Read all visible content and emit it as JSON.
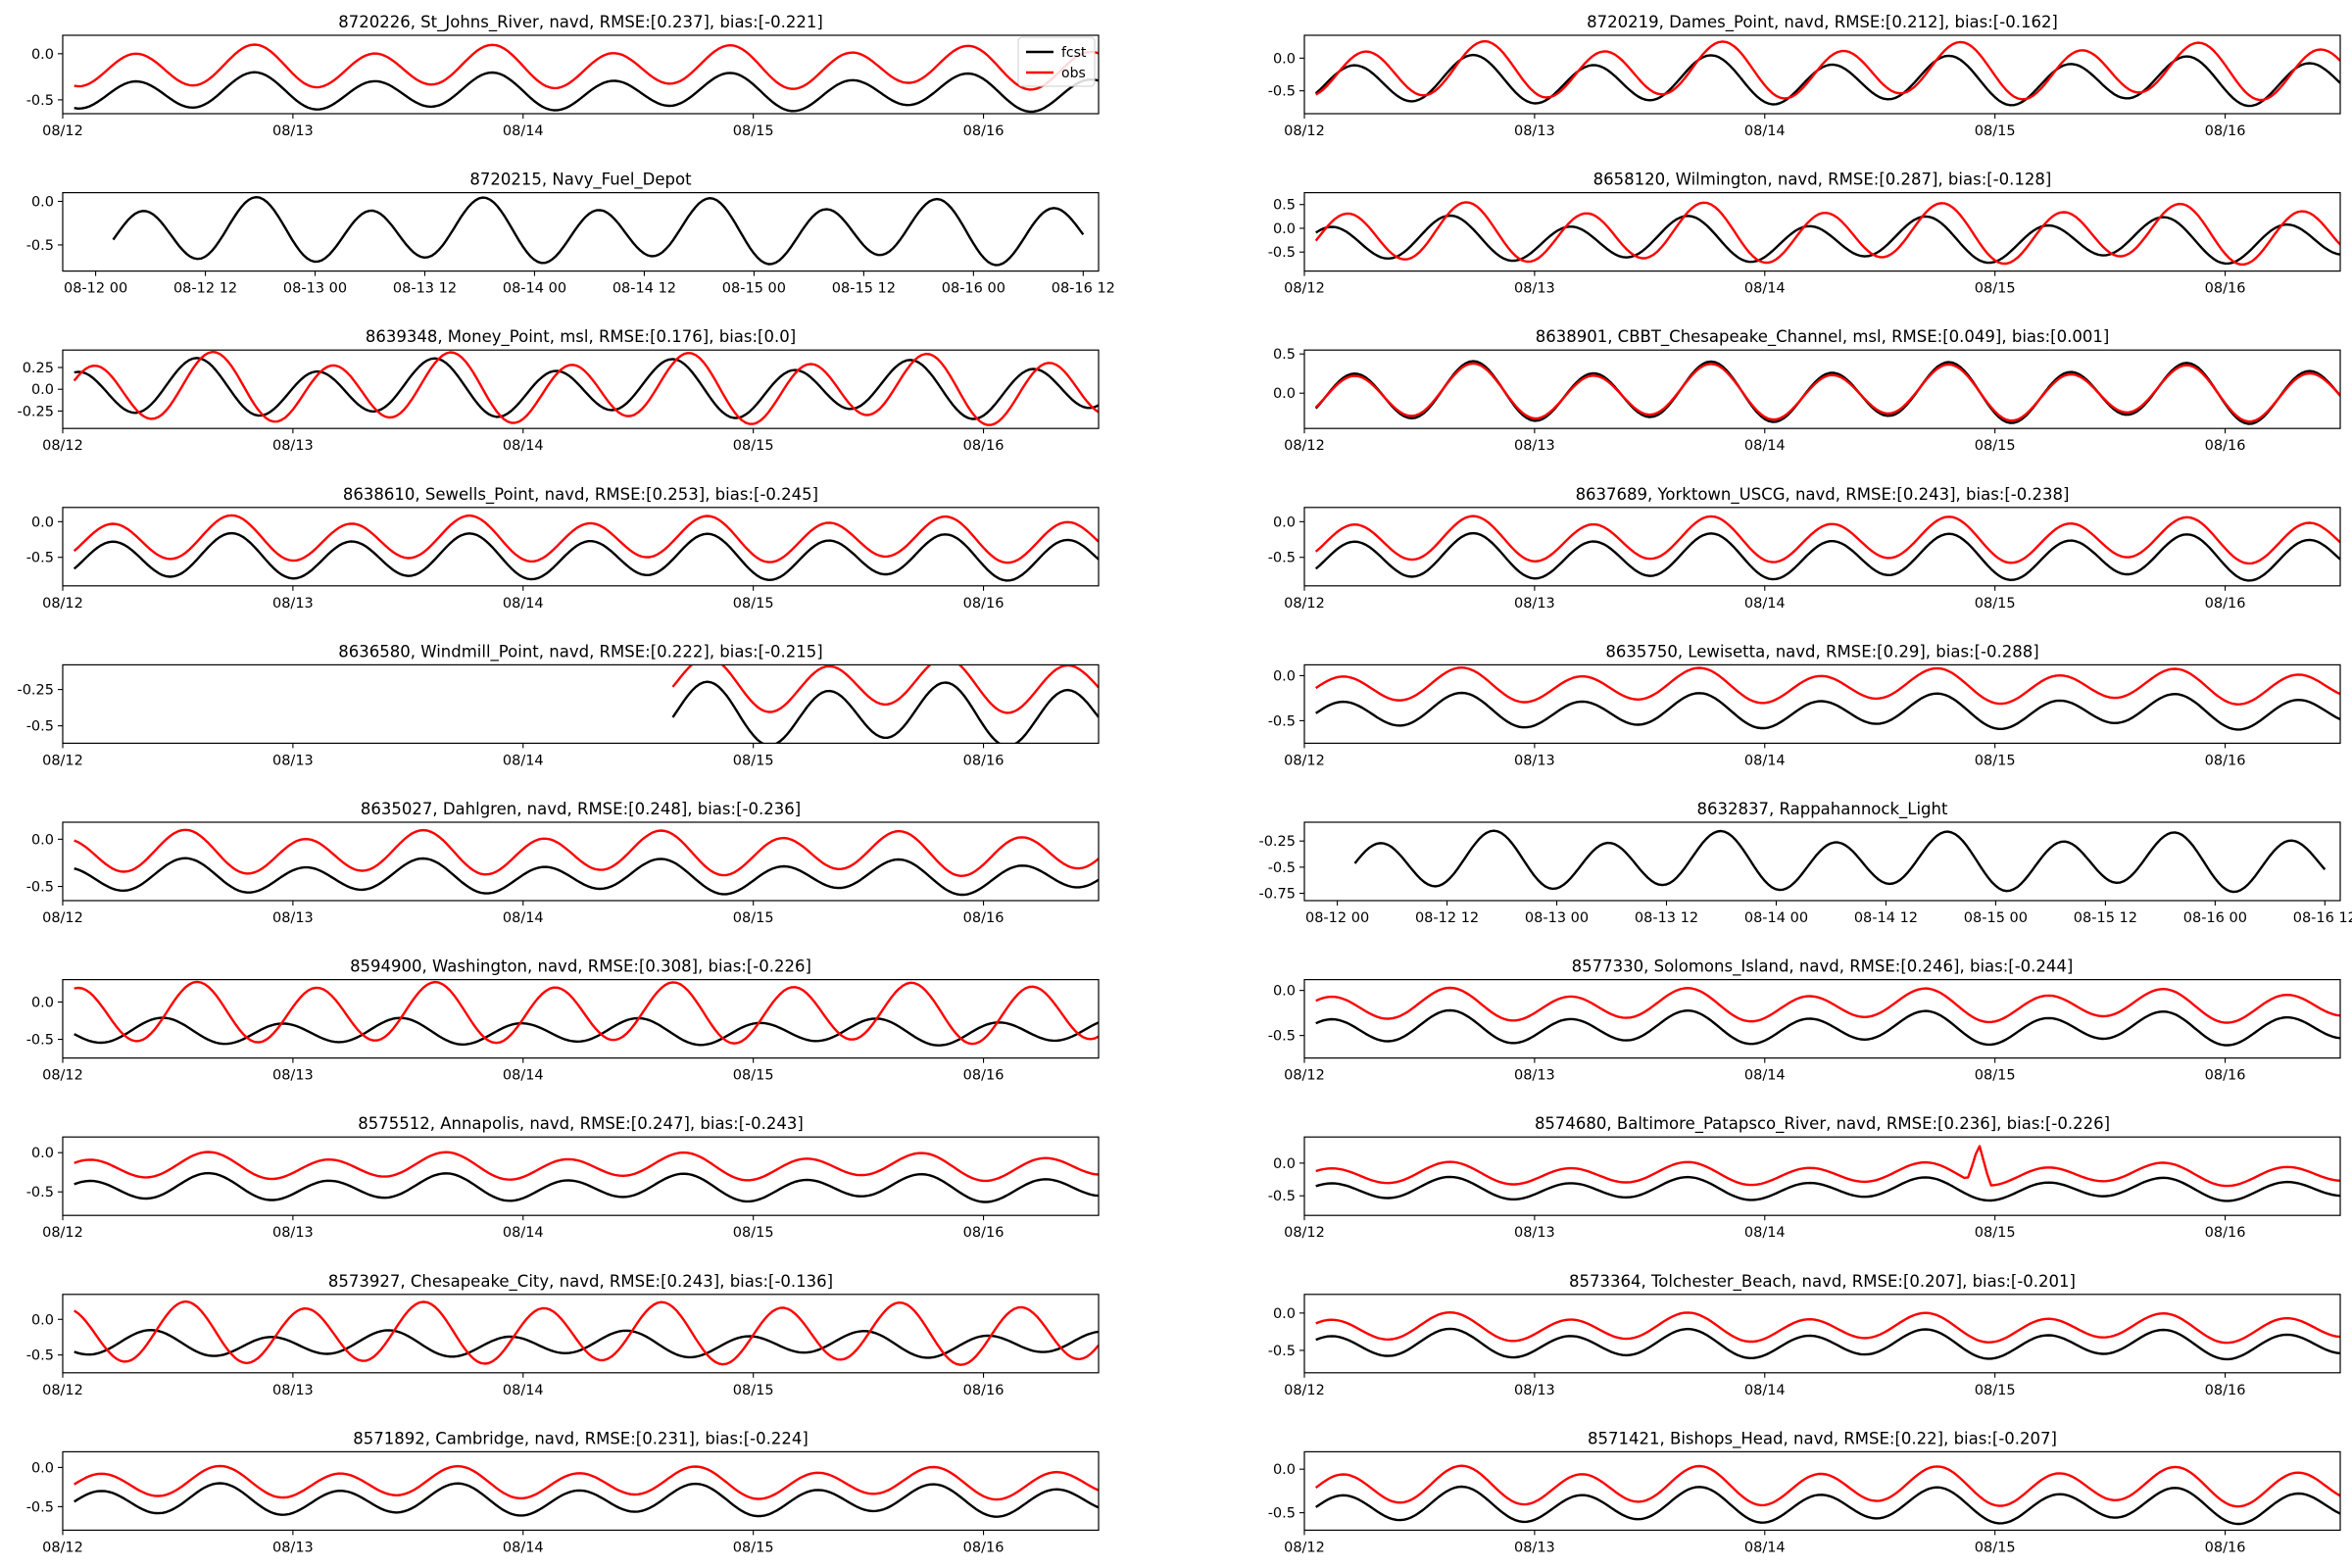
{
  "legend": {
    "fcst": "fcst",
    "obs": "obs"
  },
  "colors": {
    "fcst": "#000000",
    "obs": "#ff0000"
  },
  "date_ticks": [
    "08/12",
    "08/13",
    "08/14",
    "08/15",
    "08/16"
  ],
  "hour_ticks": [
    "08-12 00",
    "08-12 12",
    "08-13 00",
    "08-13 12",
    "08-14 00",
    "08-14 12",
    "08-15 00",
    "08-15 12",
    "08-16 00",
    "08-16 12"
  ],
  "chart_data": [
    {
      "type": "line",
      "title": "8720226, St_Johns_River, navd, RMSE:[0.237], bias:[-0.221]",
      "ylim": [
        -0.65,
        0.2
      ],
      "yticks": [
        0.0,
        -0.5
      ],
      "xlim": [
        0,
        4.5
      ],
      "legend": "top-right",
      "fcst": {
        "start": 0.05,
        "end": 4.5,
        "mean": -0.42,
        "a1": 0.17,
        "a2": 0.05,
        "phase": 0.2
      },
      "obs": {
        "start": 0.05,
        "end": 4.5,
        "mean": -0.15,
        "a1": 0.2,
        "a2": 0.05,
        "phase": 0.2
      }
    },
    {
      "type": "line",
      "title": "8720219, Dames_Point, navd, RMSE:[0.212], bias:[-0.162]",
      "ylim": [
        -0.85,
        0.35
      ],
      "yticks": [
        0.0,
        -0.5
      ],
      "xlim": [
        0,
        4.5
      ],
      "fcst": {
        "start": 0.05,
        "end": 4.5,
        "mean": -0.35,
        "a1": 0.32,
        "a2": 0.08,
        "phase": 0.3
      },
      "obs": {
        "start": 0.05,
        "end": 4.5,
        "mean": -0.2,
        "a1": 0.38,
        "a2": 0.08,
        "phase": 0.25
      }
    },
    {
      "type": "line",
      "title": "8720215, Navy_Fuel_Depot",
      "ylim": [
        -0.8,
        0.1
      ],
      "yticks": [
        0.0,
        -0.5
      ],
      "xlim": [
        -0.15,
        4.57
      ],
      "hourly": true,
      "fcst": {
        "start": 0.08,
        "end": 4.5,
        "mean": -0.35,
        "a1": 0.32,
        "a2": 0.08,
        "phase": 0.3
      }
    },
    {
      "type": "line",
      "title": "8658120, Wilmington, navd, RMSE:[0.287], bias:[-0.128]",
      "ylim": [
        -0.9,
        0.75
      ],
      "yticks": [
        0.5,
        0.0,
        -0.5
      ],
      "xlim": [
        0,
        4.5
      ],
      "fcst": {
        "start": 0.05,
        "end": 4.5,
        "mean": -0.25,
        "a1": 0.4,
        "a2": 0.12,
        "phase": 0.4
      },
      "obs": {
        "start": 0.05,
        "end": 4.5,
        "mean": -0.12,
        "a1": 0.55,
        "a2": 0.12,
        "phase": 0.33
      }
    },
    {
      "type": "line",
      "title": "8639348, Money_Point, msl, RMSE:[0.176], bias:[0.0]",
      "ylim": [
        -0.45,
        0.45
      ],
      "yticks": [
        0.25,
        0.0,
        -0.25
      ],
      "xlim": [
        0,
        4.5
      ],
      "fcst": {
        "start": 0.05,
        "end": 4.5,
        "mean": 0.0,
        "a1": 0.28,
        "a2": 0.08,
        "phase": 0.45
      },
      "obs": {
        "start": 0.05,
        "end": 4.5,
        "mean": 0.0,
        "a1": 0.35,
        "a2": 0.08,
        "phase": 0.38
      }
    },
    {
      "type": "line",
      "title": "8638901, CBBT_Chesapeake_Channel, msl, RMSE:[0.049], bias:[0.001]",
      "ylim": [
        -0.45,
        0.55
      ],
      "yticks": [
        0.5,
        0.0
      ],
      "xlim": [
        0,
        4.5
      ],
      "fcst": {
        "start": 0.05,
        "end": 4.5,
        "mean": 0.0,
        "a1": 0.33,
        "a2": 0.08,
        "phase": 0.3
      },
      "obs": {
        "start": 0.05,
        "end": 4.5,
        "mean": 0.0,
        "a1": 0.3,
        "a2": 0.08,
        "phase": 0.3
      }
    },
    {
      "type": "line",
      "title": "8638610, Sewells_Point, navd, RMSE:[0.253], bias:[-0.245]",
      "ylim": [
        -0.9,
        0.2
      ],
      "yticks": [
        0.0,
        -0.5
      ],
      "xlim": [
        0,
        4.5
      ],
      "fcst": {
        "start": 0.05,
        "end": 4.5,
        "mean": -0.5,
        "a1": 0.28,
        "a2": 0.06,
        "phase": 0.3
      },
      "obs": {
        "start": 0.05,
        "end": 4.5,
        "mean": -0.25,
        "a1": 0.28,
        "a2": 0.06,
        "phase": 0.3
      }
    },
    {
      "type": "line",
      "title": "8637689, Yorktown_USCG, navd, RMSE:[0.243], bias:[-0.238]",
      "ylim": [
        -0.9,
        0.2
      ],
      "yticks": [
        0.0,
        -0.5
      ],
      "xlim": [
        0,
        4.5
      ],
      "fcst": {
        "start": 0.05,
        "end": 4.5,
        "mean": -0.5,
        "a1": 0.28,
        "a2": 0.06,
        "phase": 0.3
      },
      "obs": {
        "start": 0.05,
        "end": 4.5,
        "mean": -0.26,
        "a1": 0.28,
        "a2": 0.06,
        "phase": 0.3
      }
    },
    {
      "type": "line",
      "title": "8636580, Windmill_Point, navd, RMSE:[0.222], bias:[-0.215]",
      "ylim": [
        -0.62,
        -0.08
      ],
      "yticks": [
        -0.25,
        -0.5
      ],
      "xlim": [
        0,
        4.5
      ],
      "fcst": {
        "start": 2.65,
        "end": 4.5,
        "mean": -0.42,
        "a1": 0.19,
        "a2": 0.04,
        "phase": 0.3
      },
      "obs": {
        "start": 2.65,
        "end": 4.5,
        "mean": -0.22,
        "a1": 0.16,
        "a2": 0.04,
        "phase": 0.3
      }
    },
    {
      "type": "line",
      "title": "8635750, Lewisetta, navd, RMSE:[0.29], bias:[-0.288]",
      "ylim": [
        -0.75,
        0.12
      ],
      "yticks": [
        0.0,
        -0.5
      ],
      "xlim": [
        0,
        4.5
      ],
      "fcst": {
        "start": 0.05,
        "end": 4.5,
        "mean": -0.4,
        "a1": 0.16,
        "a2": 0.05,
        "phase": 0.35
      },
      "obs": {
        "start": 0.05,
        "end": 4.5,
        "mean": -0.12,
        "a1": 0.16,
        "a2": 0.05,
        "phase": 0.35
      }
    },
    {
      "type": "line",
      "title": "8635027, Dahlgren, navd, RMSE:[0.248], bias:[-0.236]",
      "ylim": [
        -0.65,
        0.18
      ],
      "yticks": [
        0.0,
        -0.5
      ],
      "xlim": [
        0,
        4.5
      ],
      "fcst": {
        "start": 0.05,
        "end": 4.5,
        "mean": -0.4,
        "a1": 0.15,
        "a2": 0.05,
        "phase": 0.5
      },
      "obs": {
        "start": 0.05,
        "end": 4.5,
        "mean": -0.15,
        "a1": 0.2,
        "a2": 0.05,
        "phase": 0.5
      }
    },
    {
      "type": "line",
      "title": "8632837, Rappahannock_Light",
      "ylim": [
        -0.82,
        -0.07
      ],
      "yticks": [
        -0.25,
        -0.5,
        -0.75
      ],
      "xlim": [
        -0.15,
        4.57
      ],
      "hourly": true,
      "fcst": {
        "start": 0.08,
        "end": 4.5,
        "mean": -0.45,
        "a1": 0.24,
        "a2": 0.06,
        "phase": 0.32
      }
    },
    {
      "type": "line",
      "title": "8594900, Washington, navd, RMSE:[0.308], bias:[-0.226]",
      "ylim": [
        -0.75,
        0.3
      ],
      "yticks": [
        0.0,
        -0.5
      ],
      "xlim": [
        0,
        4.5
      ],
      "fcst": {
        "start": 0.05,
        "end": 4.5,
        "mean": -0.4,
        "a1": 0.15,
        "a2": 0.04,
        "phase": 0.6
      },
      "obs": {
        "start": 0.05,
        "end": 4.5,
        "mean": -0.15,
        "a1": 0.38,
        "a2": 0.04,
        "phase": 0.45
      }
    },
    {
      "type": "line",
      "title": "8577330, Solomons_Island, navd, RMSE:[0.246], bias:[-0.244]",
      "ylim": [
        -0.75,
        0.12
      ],
      "yticks": [
        0.0,
        -0.5
      ],
      "xlim": [
        0,
        4.5
      ],
      "fcst": {
        "start": 0.05,
        "end": 4.5,
        "mean": -0.42,
        "a1": 0.15,
        "a2": 0.05,
        "phase": 0.4
      },
      "obs": {
        "start": 0.05,
        "end": 4.5,
        "mean": -0.17,
        "a1": 0.15,
        "a2": 0.05,
        "phase": 0.4
      }
    },
    {
      "type": "line",
      "title": "8575512, Annapolis, navd, RMSE:[0.247], bias:[-0.243]",
      "ylim": [
        -0.8,
        0.2
      ],
      "yticks": [
        0.0,
        -0.5
      ],
      "xlim": [
        0,
        4.5
      ],
      "fcst": {
        "start": 0.05,
        "end": 4.5,
        "mean": -0.45,
        "a1": 0.14,
        "a2": 0.05,
        "phase": 0.4
      },
      "obs": {
        "start": 0.05,
        "end": 4.5,
        "mean": -0.18,
        "a1": 0.14,
        "a2": 0.05,
        "phase": 0.4
      }
    },
    {
      "type": "line",
      "title": "8574680, Baltimore_Patapsco_River, navd, RMSE:[0.236], bias:[-0.226]",
      "ylim": [
        -0.8,
        0.4
      ],
      "yticks": [
        0.0,
        -0.5
      ],
      "xlim": [
        0,
        4.5
      ],
      "fcst": {
        "start": 0.05,
        "end": 4.5,
        "mean": -0.4,
        "a1": 0.14,
        "a2": 0.05,
        "phase": 0.4
      },
      "obs": {
        "start": 0.05,
        "end": 4.5,
        "mean": -0.17,
        "a1": 0.14,
        "a2": 0.05,
        "phase": 0.4
      },
      "spike": {
        "x": 2.93,
        "y": 0.3
      }
    },
    {
      "type": "line",
      "title": "8573927, Chesapeake_City, navd, RMSE:[0.243], bias:[-0.136]",
      "ylim": [
        -0.75,
        0.35
      ],
      "yticks": [
        0.0,
        -0.5
      ],
      "xlim": [
        0,
        4.5
      ],
      "fcst": {
        "start": 0.05,
        "end": 4.5,
        "mean": -0.35,
        "a1": 0.15,
        "a2": 0.05,
        "phase": 0.65
      },
      "obs": {
        "start": 0.05,
        "end": 4.5,
        "mean": -0.2,
        "a1": 0.4,
        "a2": 0.05,
        "phase": 0.5
      }
    },
    {
      "type": "line",
      "title": "8573364, Tolchester_Beach, navd, RMSE:[0.207], bias:[-0.201]",
      "ylim": [
        -0.8,
        0.25
      ],
      "yticks": [
        0.0,
        -0.5
      ],
      "xlim": [
        0,
        4.5
      ],
      "fcst": {
        "start": 0.05,
        "end": 4.5,
        "mean": -0.42,
        "a1": 0.16,
        "a2": 0.05,
        "phase": 0.4
      },
      "obs": {
        "start": 0.05,
        "end": 4.5,
        "mean": -0.2,
        "a1": 0.16,
        "a2": 0.05,
        "phase": 0.4
      }
    },
    {
      "type": "line",
      "title": "8571892, Cambridge, navd, RMSE:[0.231], bias:[-0.224]",
      "ylim": [
        -0.8,
        0.2
      ],
      "yticks": [
        0.0,
        -0.5
      ],
      "xlim": [
        0,
        4.5
      ],
      "fcst": {
        "start": 0.05,
        "end": 4.5,
        "mean": -0.42,
        "a1": 0.17,
        "a2": 0.05,
        "phase": 0.35
      },
      "obs": {
        "start": 0.05,
        "end": 4.5,
        "mean": -0.2,
        "a1": 0.17,
        "a2": 0.05,
        "phase": 0.35
      }
    },
    {
      "type": "line",
      "title": "8571421, Bishops_Head, navd, RMSE:[0.22], bias:[-0.207]",
      "ylim": [
        -0.7,
        0.2
      ],
      "yticks": [
        0.0,
        -0.5
      ],
      "xlim": [
        0,
        4.5
      ],
      "fcst": {
        "start": 0.05,
        "end": 4.5,
        "mean": -0.42,
        "a1": 0.17,
        "a2": 0.05,
        "phase": 0.35
      },
      "obs": {
        "start": 0.05,
        "end": 4.5,
        "mean": -0.2,
        "a1": 0.19,
        "a2": 0.05,
        "phase": 0.35
      }
    }
  ]
}
